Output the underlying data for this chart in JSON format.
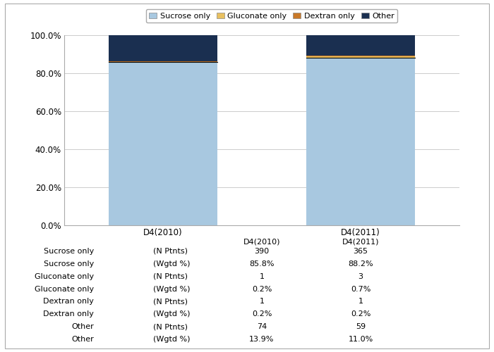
{
  "categories": [
    "D4(2010)",
    "D4(2011)"
  ],
  "series": {
    "Sucrose only": [
      85.8,
      88.2
    ],
    "Gluconate only": [
      0.2,
      0.7
    ],
    "Dextran only": [
      0.2,
      0.2
    ],
    "Other": [
      13.9,
      11.0
    ]
  },
  "colors": {
    "Sucrose only": "#a8c8e0",
    "Gluconate only": "#e8c060",
    "Dextran only": "#c87828",
    "Other": "#1a2f50"
  },
  "legend_order": [
    "Sucrose only",
    "Gluconate only",
    "Dextran only",
    "Other"
  ],
  "ylim": [
    0,
    100
  ],
  "yticks": [
    0,
    20,
    40,
    60,
    80,
    100
  ],
  "ytick_labels": [
    "0.0%",
    "20.0%",
    "40.0%",
    "60.0%",
    "80.0%",
    "100.0%"
  ],
  "table_rows": [
    [
      "Sucrose only",
      "(N Ptnts)",
      "390",
      "365"
    ],
    [
      "Sucrose only",
      "(Wgtd %)",
      "85.8%",
      "88.2%"
    ],
    [
      "Gluconate only",
      "(N Ptnts)",
      "1",
      "3"
    ],
    [
      "Gluconate only",
      "(Wgtd %)",
      "0.2%",
      "0.7%"
    ],
    [
      "Dextran only",
      "(N Ptnts)",
      "1",
      "1"
    ],
    [
      "Dextran only",
      "(Wgtd %)",
      "0.2%",
      "0.2%"
    ],
    [
      "Other",
      "(N Ptnts)",
      "74",
      "59"
    ],
    [
      "Other",
      "(Wgtd %)",
      "13.9%",
      "11.0%"
    ]
  ],
  "background_color": "#ffffff",
  "grid_color": "#cccccc",
  "axis_font_size": 8.5,
  "legend_font_size": 8,
  "table_font_size": 8
}
